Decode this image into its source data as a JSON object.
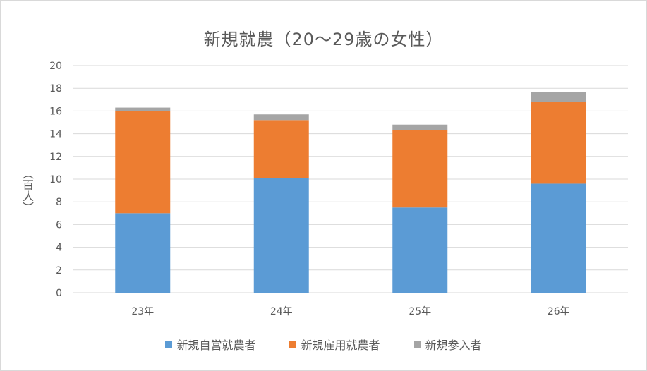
{
  "chart_data": {
    "type": "bar",
    "stacked": true,
    "title": "新規就農（20～29歳の女性）",
    "ylabel": "（百人）",
    "xlabel": "",
    "ylim": [
      0,
      20
    ],
    "yticks": [
      "0",
      "2",
      "4",
      "6",
      "8",
      "10",
      "12",
      "14",
      "16",
      "18",
      "20"
    ],
    "categories": [
      "23年",
      "24年",
      "25年",
      "26年"
    ],
    "series": [
      {
        "name": "新規自営就農者",
        "color": "#5b9bd5",
        "values": [
          7.0,
          10.1,
          7.5,
          9.6
        ]
      },
      {
        "name": "新規雇用就農者",
        "color": "#ed7d31",
        "values": [
          9.0,
          5.1,
          6.8,
          7.2
        ]
      },
      {
        "name": "新規参入者",
        "color": "#a5a5a5",
        "values": [
          0.3,
          0.5,
          0.5,
          0.9
        ]
      }
    ],
    "grid": true,
    "legend_position": "bottom"
  }
}
